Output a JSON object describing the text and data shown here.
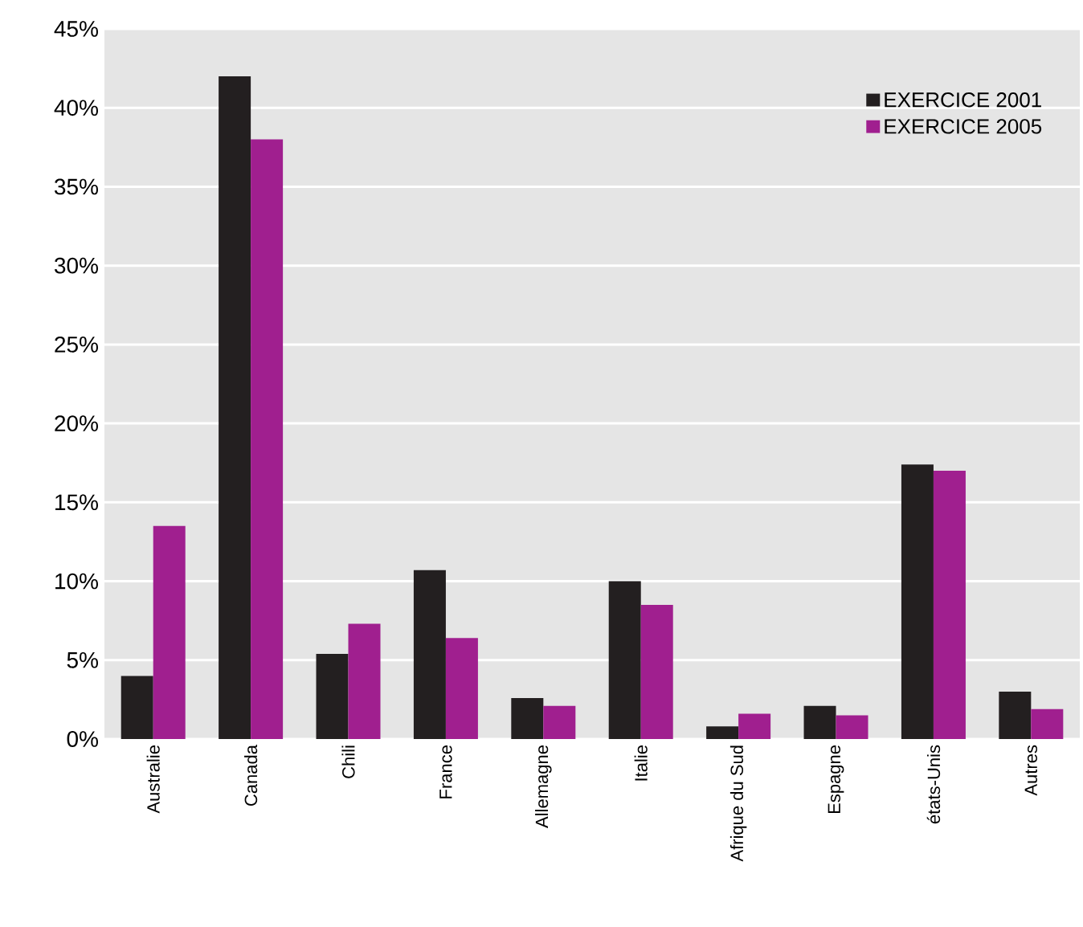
{
  "chart_data": {
    "type": "bar",
    "categories": [
      "Australie",
      "Canada",
      "Chili",
      "France",
      "Allemagne",
      "Italie",
      "Afrique du Sud",
      "Espagne",
      "états-Unis",
      "Autres"
    ],
    "series": [
      {
        "name": "EXERCICE 2001",
        "color": "#231f20",
        "values": [
          4.0,
          42.0,
          5.4,
          10.7,
          2.6,
          10.0,
          0.8,
          2.1,
          17.4,
          3.0
        ]
      },
      {
        "name": "EXERCICE 2005",
        "color": "#a01f8f",
        "values": [
          13.5,
          38.0,
          7.3,
          6.4,
          2.1,
          8.5,
          1.6,
          1.5,
          17.0,
          1.9
        ]
      }
    ],
    "ylim": [
      0,
      45
    ],
    "yticks": [
      {
        "value": 0,
        "label": "0%"
      },
      {
        "value": 5,
        "label": "5%"
      },
      {
        "value": 10,
        "label": "10%"
      },
      {
        "value": 15,
        "label": "15%"
      },
      {
        "value": 20,
        "label": "20%"
      },
      {
        "value": 25,
        "label": "25%"
      },
      {
        "value": 30,
        "label": "30%"
      },
      {
        "value": 35,
        "label": "35%"
      },
      {
        "value": 40,
        "label": "40%"
      },
      {
        "value": 45,
        "label": "45%"
      }
    ],
    "grid": "y",
    "legend": "top right"
  }
}
